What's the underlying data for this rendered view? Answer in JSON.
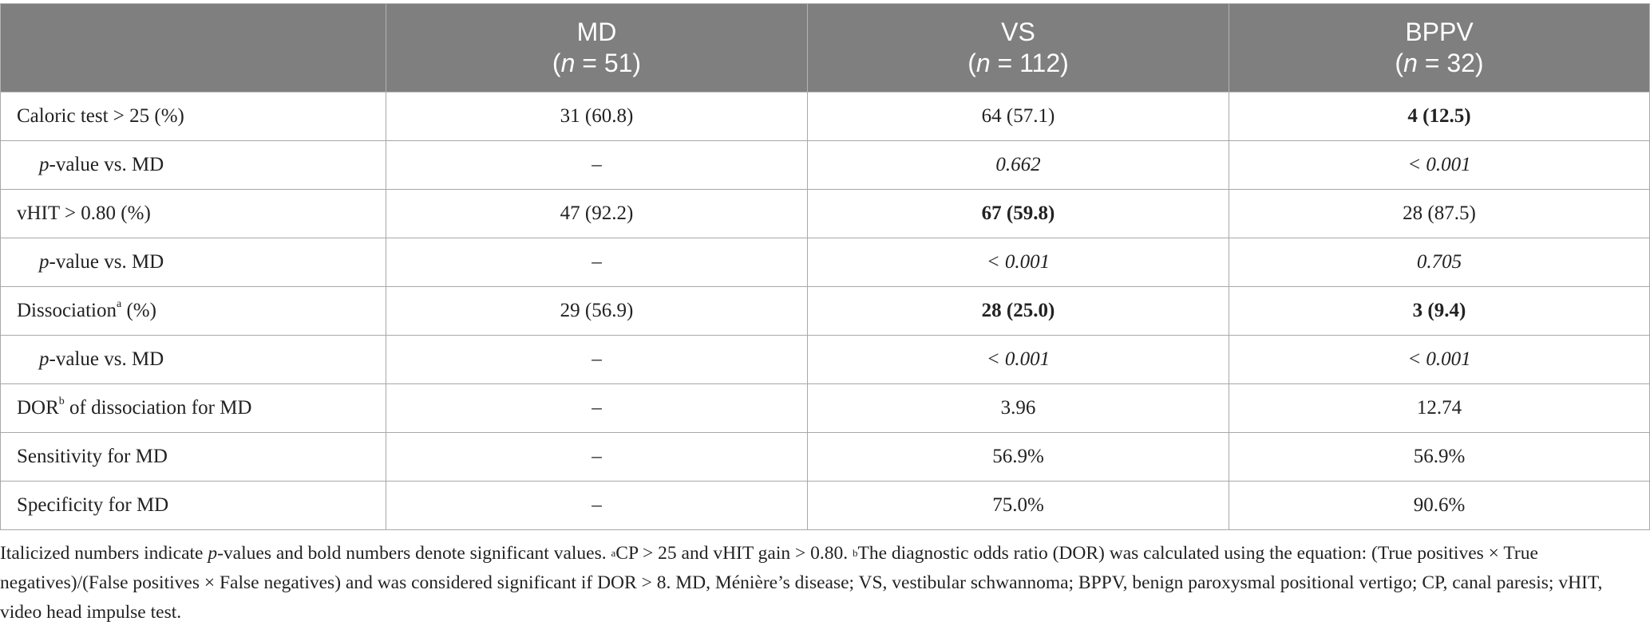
{
  "table": {
    "header": {
      "corner": "",
      "columns": [
        {
          "name": "MD",
          "n_open": "(",
          "n_var": "n",
          "n_rest": " = 51)"
        },
        {
          "name": "VS",
          "n_open": "(",
          "n_var": "n",
          "n_rest": " = 112)"
        },
        {
          "name": "BPPV",
          "n_open": "(",
          "n_var": "n",
          "n_rest": " = 32)"
        }
      ]
    },
    "rows": [
      {
        "label": "Caloric test > 25 (%)",
        "md": "31 (60.8)",
        "vs": "64 (57.1)",
        "bppv": "4 (12.5)"
      },
      {
        "label_p": "p",
        "label_rest": "-value vs. MD",
        "md": "–",
        "vs": "0.662",
        "bppv": "< 0.001"
      },
      {
        "label": "vHIT > 0.80 (%)",
        "md": "47 (92.2)",
        "vs": "67 (59.8)",
        "bppv": "28 (87.5)"
      },
      {
        "label_p": "p",
        "label_rest": "-value vs. MD",
        "md": "–",
        "vs": "< 0.001",
        "bppv": "0.705"
      },
      {
        "label_main": "Dissociation",
        "label_sup": "a",
        "label_rest": " (%)",
        "md": "29 (56.9)",
        "vs": "28 (25.0)",
        "bppv": "3 (9.4)"
      },
      {
        "label_p": "p",
        "label_rest": "-value vs. MD",
        "md": "–",
        "vs": "< 0.001",
        "bppv": "< 0.001"
      },
      {
        "label_main": "DOR",
        "label_sup": "b",
        "label_rest": " of dissociation for MD",
        "md": "–",
        "vs": "3.96",
        "bppv": "12.74"
      },
      {
        "label": "Sensitivity for MD",
        "md": "–",
        "vs": "56.9%",
        "bppv": "56.9%"
      },
      {
        "label": "Specificity for MD",
        "md": "–",
        "vs": "75.0%",
        "bppv": "90.6%"
      }
    ]
  },
  "footnote": {
    "s1": "Italicized numbers indicate ",
    "s1_p": "p",
    "s2": "-values and bold numbers denote significant values. ",
    "sup_a": "a",
    "s3": "CP > 25 and vHIT gain > 0.80. ",
    "sup_b": "b",
    "s4": "The diagnostic odds ratio (DOR) was calculated using the equation: (True positives × True negatives)/(False positives × False negatives) and was considered significant if DOR > 8. MD, Ménière’s disease; VS, vestibular schwannoma; BPPV, benign paroxysmal positional vertigo; CP, canal paresis; vHIT, video head impulse test."
  }
}
